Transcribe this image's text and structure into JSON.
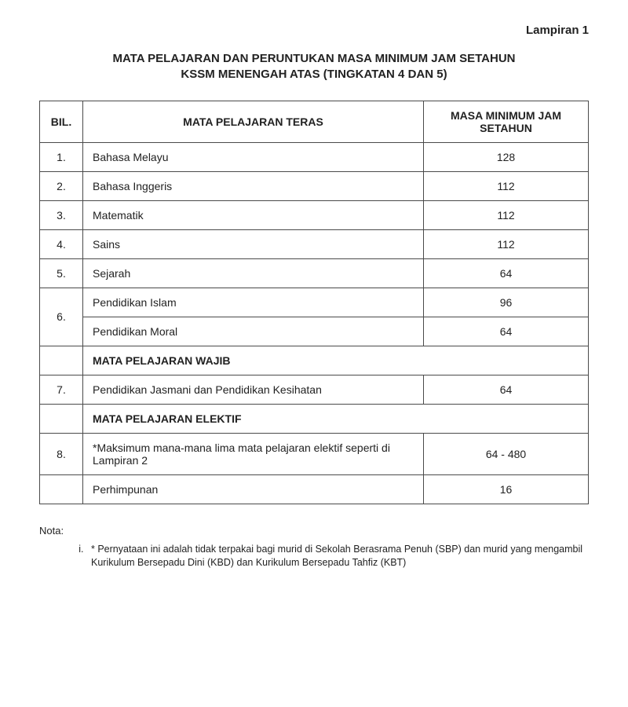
{
  "appendix_label": "Lampiran 1",
  "title_line1": "MATA PELAJARAN DAN PERUNTUKAN MASA MINIMUM JAM SETAHUN",
  "title_line2": "KSSM MENENGAH ATAS (TINGKATAN 4 DAN 5)",
  "table": {
    "header_bil": "BIL.",
    "header_subject": "MATA PELAJARAN TERAS",
    "header_hours": "MASA MINIMUM JAM SETAHUN",
    "rows": [
      {
        "bil": "1.",
        "subject": "Bahasa Melayu",
        "hours": "128"
      },
      {
        "bil": "2.",
        "subject": "Bahasa Inggeris",
        "hours": "112"
      },
      {
        "bil": "3.",
        "subject": "Matematik",
        "hours": "112"
      },
      {
        "bil": "4.",
        "subject": "Sains",
        "hours": "112"
      },
      {
        "bil": "5.",
        "subject": "Sejarah",
        "hours": "64"
      }
    ],
    "row6": {
      "bil": "6.",
      "subject_a": "Pendidikan Islam",
      "hours_a": "96",
      "subject_b": "Pendidikan Moral",
      "hours_b": "64"
    },
    "section_wajib": "MATA PELAJARAN WAJIB",
    "row7": {
      "bil": "7.",
      "subject": "Pendidikan Jasmani dan Pendidikan Kesihatan",
      "hours": "64"
    },
    "section_elektif": "MATA PELAJARAN ELEKTIF",
    "row8": {
      "bil": "8.",
      "subject": "*Maksimum mana-mana lima mata pelajaran elektif seperti di Lampiran 2",
      "hours": "64 - 480"
    },
    "row_last": {
      "subject": "Perhimpunan",
      "hours": "16"
    }
  },
  "nota_label": "Nota:",
  "nota_item": "*  Pernyataan ini adalah tidak terpakai bagi murid di Sekolah Berasrama Penuh (SBP) dan murid yang mengambil Kurikulum Bersepadu Dini (KBD) dan Kurikulum Bersepadu Tahfiz (KBT)"
}
